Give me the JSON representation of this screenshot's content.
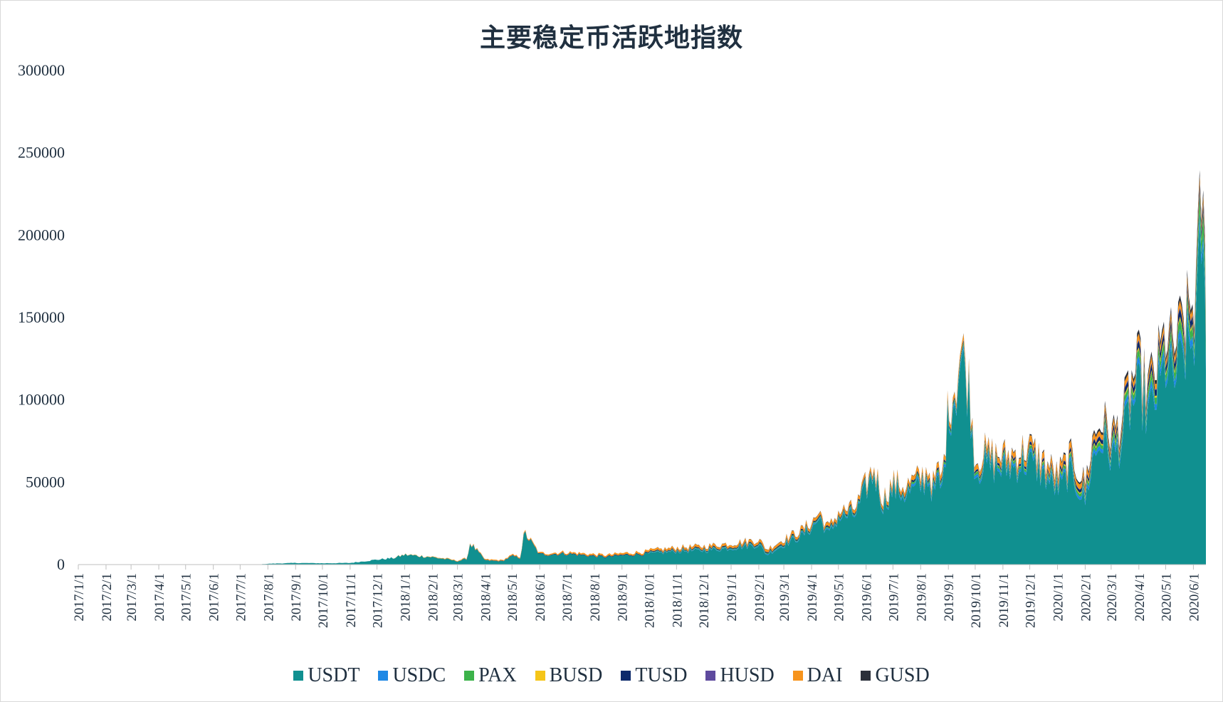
{
  "chart_data": {
    "type": "area",
    "stacked": true,
    "title": "主要稳定币活跃地指数",
    "xlabel": "",
    "ylabel": "",
    "ylim": [
      0,
      300000
    ],
    "yticks": [
      0,
      50000,
      100000,
      150000,
      200000,
      250000,
      300000
    ],
    "xrange": [
      "2017/1/1",
      "2020/6/15"
    ],
    "x_ticks": [
      "2017/1/1",
      "2017/2/1",
      "2017/3/1",
      "2017/4/1",
      "2017/5/1",
      "2017/6/1",
      "2017/7/1",
      "2017/8/1",
      "2017/9/1",
      "2017/10/1",
      "2017/11/1",
      "2017/12/1",
      "2018/1/1",
      "2018/2/1",
      "2018/3/1",
      "2018/4/1",
      "2018/5/1",
      "2018/6/1",
      "2018/7/1",
      "2018/8/1",
      "2018/9/1",
      "2018/10/1",
      "2018/11/1",
      "2018/12/1",
      "2019/1/1",
      "2019/2/1",
      "2019/3/1",
      "2019/4/1",
      "2019/5/1",
      "2019/6/1",
      "2019/7/1",
      "2019/8/1",
      "2019/9/1",
      "2019/10/1",
      "2019/11/1",
      "2019/12/1",
      "2020/1/1",
      "2020/2/1",
      "2020/3/1",
      "2020/4/1",
      "2020/5/1",
      "2020/6/1"
    ],
    "grid": false,
    "legend_position": "bottom",
    "series": [
      {
        "name": "USDT",
        "color": "#109090",
        "x": [
          "2017/7/20",
          "2017/8/1",
          "2017/9/1",
          "2017/10/1",
          "2017/11/1",
          "2017/12/1",
          "2017/12/20",
          "2018/1/1",
          "2018/2/1",
          "2018/2/20",
          "2018/3/1",
          "2018/3/12",
          "2018/3/15",
          "2018/4/1",
          "2018/4/20",
          "2018/5/1",
          "2018/5/10",
          "2018/5/15",
          "2018/6/1",
          "2018/7/1",
          "2018/8/1",
          "2018/8/15",
          "2018/9/1",
          "2018/10/1",
          "2018/11/1",
          "2018/12/1",
          "2019/1/1",
          "2019/2/1",
          "2019/2/10",
          "2019/3/1",
          "2019/3/20",
          "2019/4/1",
          "2019/4/10",
          "2019/4/20",
          "2019/5/1",
          "2019/5/20",
          "2019/6/1",
          "2019/6/10",
          "2019/6/20",
          "2019/7/1",
          "2019/7/15",
          "2019/8/1",
          "2019/8/10",
          "2019/8/15",
          "2019/8/20",
          "2019/8/25",
          "2019/9/1",
          "2019/9/10",
          "2019/9/15",
          "2019/9/20",
          "2019/9/25",
          "2019/10/1",
          "2019/10/10",
          "2019/11/1",
          "2019/12/1",
          "2019/12/20",
          "2020/1/1",
          "2020/1/15",
          "2020/2/1",
          "2020/2/10",
          "2020/2/20",
          "2020/3/1",
          "2020/3/12",
          "2020/3/20",
          "2020/4/1",
          "2020/4/10",
          "2020/4/20",
          "2020/5/1",
          "2020/5/10",
          "2020/5/20",
          "2020/6/1",
          "2020/6/5",
          "2020/6/10",
          "2020/6/15"
        ],
        "values": [
          0,
          500,
          1000,
          800,
          1000,
          3000,
          4000,
          6000,
          4500,
          3000,
          2000,
          3500,
          13000,
          2500,
          2000,
          5000,
          4000,
          19000,
          6000,
          6500,
          5000,
          4500,
          5500,
          6500,
          8000,
          8500,
          10000,
          12000,
          6000,
          12000,
          17000,
          22000,
          28000,
          18000,
          28000,
          30000,
          45000,
          55000,
          35000,
          45000,
          42000,
          47000,
          52000,
          42000,
          50000,
          45000,
          90000,
          105000,
          125000,
          115000,
          100000,
          55000,
          60000,
          57000,
          62000,
          52000,
          45000,
          55000,
          38000,
          65000,
          75000,
          65000,
          72000,
          90000,
          105000,
          90000,
          100000,
          120000,
          110000,
          125000,
          135000,
          150000,
          200000,
          140000
        ]
      },
      {
        "name": "USDC",
        "color": "#1e88e5",
        "x": [
          "2018/10/1",
          "2019/6/1",
          "2019/9/15",
          "2020/1/1",
          "2020/3/15",
          "2020/5/1",
          "2020/6/1",
          "2020/6/15"
        ],
        "values": [
          200,
          800,
          2000,
          1800,
          3000,
          4000,
          5000,
          6000
        ]
      },
      {
        "name": "PAX",
        "color": "#3cb34a",
        "x": [
          "2018/10/1",
          "2019/6/1",
          "2019/9/15",
          "2020/1/1",
          "2020/3/15",
          "2020/5/1",
          "2020/6/1",
          "2020/6/15"
        ],
        "values": [
          200,
          700,
          1500,
          1500,
          3000,
          4500,
          6000,
          12000
        ]
      },
      {
        "name": "BUSD",
        "color": "#f5c518",
        "x": [
          "2019/9/20",
          "2020/1/1",
          "2020/3/15",
          "2020/6/15"
        ],
        "values": [
          200,
          600,
          1000,
          1500
        ]
      },
      {
        "name": "TUSD",
        "color": "#0d2a6b",
        "x": [
          "2018/3/1",
          "2019/6/1",
          "2019/9/15",
          "2020/1/1",
          "2020/3/15",
          "2020/6/15"
        ],
        "values": [
          100,
          800,
          1200,
          1500,
          3000,
          5000
        ]
      },
      {
        "name": "HUSD",
        "color": "#5e4a9e",
        "x": [
          "2019/8/1",
          "2020/1/1",
          "2020/6/15"
        ],
        "values": [
          100,
          300,
          600
        ]
      },
      {
        "name": "DAI",
        "color": "#f7941d",
        "x": [
          "2017/12/20",
          "2019/6/1",
          "2019/9/15",
          "2020/1/1",
          "2020/3/15",
          "2020/6/15"
        ],
        "values": [
          100,
          2000,
          3000,
          3500,
          3000,
          4000
        ]
      },
      {
        "name": "GUSD",
        "color": "#2b2f3a",
        "x": [
          "2018/10/1",
          "2019/9/15",
          "2020/1/1",
          "2020/3/15",
          "2020/6/15"
        ],
        "values": [
          50,
          300,
          800,
          2000,
          3000
        ]
      }
    ]
  }
}
